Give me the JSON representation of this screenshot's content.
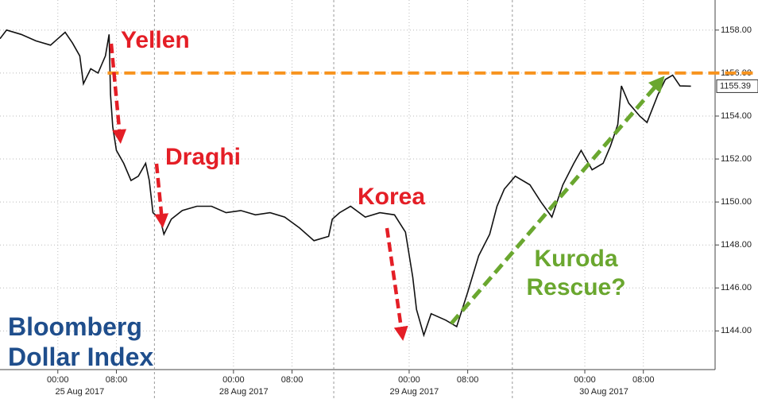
{
  "chart_data": {
    "type": "line",
    "title": "Bloomberg Dollar Index",
    "annotations": [
      "Yellen",
      "Draghi",
      "Korea",
      "Kuroda Rescue?"
    ],
    "x": [
      -7.9,
      -7,
      -5,
      -3,
      -1,
      0,
      1,
      2,
      3,
      3.5,
      4.5,
      5.5,
      6.5,
      7,
      7.2,
      7.5,
      8,
      9,
      10,
      11,
      12,
      12.5,
      13,
      14,
      14.5,
      15.5,
      17,
      19,
      21,
      23,
      25,
      27,
      29,
      31,
      33,
      35,
      37,
      37.5,
      38.5,
      40,
      42,
      44,
      46,
      47.5,
      48.5,
      49,
      50,
      51,
      53,
      54.5,
      56,
      57.5,
      59,
      60,
      61,
      62.5,
      64.5,
      66,
      67.5,
      69,
      70.5,
      71.5,
      73,
      74.5,
      75.5,
      76.5,
      77,
      78,
      79.5,
      80.5,
      82,
      83,
      84,
      85,
      86.5
    ],
    "series": [
      {
        "name": "Bloomberg Dollar Index",
        "color": "#111111",
        "values": [
          1157.6,
          1158.0,
          1157.8,
          1157.5,
          1157.3,
          1157.6,
          1157.9,
          1157.4,
          1156.8,
          1155.5,
          1156.2,
          1156.0,
          1156.8,
          1157.8,
          1155.0,
          1153.5,
          1152.4,
          1151.8,
          1151.0,
          1151.2,
          1151.8,
          1151.0,
          1149.5,
          1149.2,
          1148.5,
          1149.2,
          1149.6,
          1149.8,
          1149.8,
          1149.5,
          1149.6,
          1149.4,
          1149.5,
          1149.3,
          1148.8,
          1148.2,
          1148.4,
          1149.2,
          1149.5,
          1149.8,
          1149.3,
          1149.5,
          1149.4,
          1148.6,
          1146.5,
          1145.0,
          1143.8,
          1144.8,
          1144.5,
          1144.2,
          1145.8,
          1147.5,
          1148.5,
          1149.8,
          1150.6,
          1151.2,
          1150.8,
          1150.0,
          1149.3,
          1150.8,
          1151.8,
          1152.4,
          1151.5,
          1151.8,
          1152.6,
          1153.6,
          1155.4,
          1154.6,
          1154.0,
          1153.7,
          1155.0,
          1155.7,
          1155.9,
          1155.4,
          1155.39
        ]
      }
    ],
    "last_value": 1155.39,
    "resistance_level": 1156,
    "resistance_color": "#f7931e",
    "xlim": [
      -7.9,
      89.8
    ],
    "ylim": [
      1142.2,
      1159.4
    ],
    "xticks": [
      {
        "value": 0,
        "label": "00:00"
      },
      {
        "value": 8,
        "label": "08:00"
      },
      {
        "value": 24,
        "label": "00:00"
      },
      {
        "value": 32,
        "label": "08:00"
      },
      {
        "value": 48,
        "label": "00:00"
      },
      {
        "value": 56,
        "label": "08:00"
      },
      {
        "value": 72,
        "label": "00:00"
      },
      {
        "value": 80,
        "label": "08:00"
      }
    ],
    "date_labels": [
      {
        "value": 3,
        "label": "25 Aug 2017"
      },
      {
        "value": 25.4,
        "label": "28 Aug 2017"
      },
      {
        "value": 48.7,
        "label": "29 Aug 2017"
      },
      {
        "value": 74.6,
        "label": "30 Aug 2017"
      }
    ],
    "day_separators": [
      13.2,
      37.7,
      62.1
    ],
    "yticks": [
      {
        "value": 1144,
        "label": "1144.00"
      },
      {
        "value": 1146,
        "label": "1146.00"
      },
      {
        "value": 1148,
        "label": "1148.00"
      },
      {
        "value": 1150,
        "label": "1150.00"
      },
      {
        "value": 1152,
        "label": "1152.00"
      },
      {
        "value": 1154,
        "label": "1154.00"
      },
      {
        "value": 1156,
        "label": "1156.00"
      },
      {
        "value": 1158,
        "label": "1158.00"
      }
    ],
    "grid": true
  }
}
